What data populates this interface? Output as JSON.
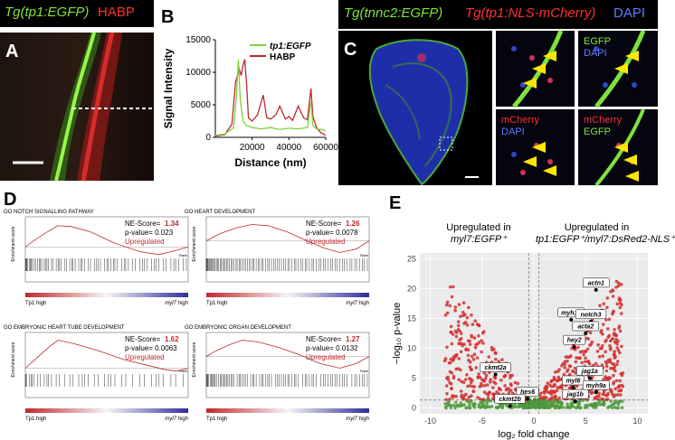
{
  "panelA": {
    "letter": "A",
    "header_green": "Tg(tp1:EGFP)",
    "header_red": "HABP"
  },
  "panelB": {
    "letter": "B"
  },
  "panelC": {
    "letter": "C",
    "header_part1": "Tg(tnnc2:EGFP)",
    "header_part2": "Tg(tp1:NLS-mCherry)",
    "header_part3": "DAPI",
    "zoom_labels": [
      {
        "l1": "",
        "l2": ""
      },
      {
        "l1": "EGFP",
        "l2": "DAPI"
      },
      {
        "l1": "mCherry",
        "l2": "DAPI"
      },
      {
        "l1": "mCherry",
        "l2": "EGFP"
      }
    ]
  },
  "panelD": {
    "letter": "D",
    "plots": [
      {
        "title": "GO NOTCH SIGNALLING PATHWAY",
        "nes_label": "NE-Score=",
        "nes": "1.34",
        "pval": "p-value= 0.023",
        "status": "Upregulated"
      },
      {
        "title": "GO HEART DEVELOPMENT",
        "nes_label": "NE-Score=",
        "nes": "1.26",
        "pval": "p-value= 0.0078",
        "status": "Upregulated"
      },
      {
        "title": "GO EMBRYONIC HEART TUBE DEVELOPMENT",
        "nes_label": "NE-Score=",
        "nes": "1.62",
        "pval": "p-value= 0.0063",
        "status": "Upregulated"
      },
      {
        "title": "GO EMBRYONIC ORGAN DEVELOPMENT",
        "nes_label": "NE-Score=",
        "nes": "1.27",
        "pval": "p-value= 0.0132",
        "status": "Upregulated"
      }
    ],
    "ylabel": "Enrichment score",
    "left_bar": "Tp1 high",
    "right_bar": "myl7 high",
    "rank": "Rank"
  },
  "panelE": {
    "letter": "E",
    "left_title_1": "Upregulated in",
    "left_title_2": "myl7:EGFP⁺",
    "right_title_1": "Upregulated in",
    "right_title_2": "tp1:EGFP⁺/myl7:DsRed2-NLS⁺"
  },
  "chart_data": [
    {
      "type": "line",
      "xlabel": "Distance (nm)",
      "ylabel": "Signal Intensity",
      "xlim": [
        0,
        60000
      ],
      "ylim": [
        0,
        15000
      ],
      "xticks": [
        20000,
        40000,
        60000
      ],
      "yticks": [
        0,
        5000,
        10000,
        15000
      ],
      "legend_placement": "top-right",
      "series": [
        {
          "name": "tp1:EGFP",
          "color": "#7fd13b",
          "x": [
            0,
            5000,
            10000,
            11500,
            12500,
            13500,
            15000,
            17000,
            20000,
            25000,
            30000,
            35000,
            40000,
            45000,
            50000,
            52000,
            53000,
            55000,
            58000,
            60000
          ],
          "y": [
            300,
            500,
            1500,
            6500,
            12000,
            6000,
            2500,
            1800,
            1500,
            1300,
            1500,
            1200,
            1400,
            1300,
            1500,
            5500,
            1800,
            1300,
            1200,
            1000
          ]
        },
        {
          "name": "HABP",
          "color": "#c0282d",
          "x": [
            0,
            5000,
            9000,
            11000,
            13000,
            14000,
            15000,
            16000,
            17000,
            18000,
            20000,
            23000,
            26000,
            28000,
            30000,
            33000,
            35000,
            38000,
            40000,
            42000,
            45000,
            48000,
            50000,
            52000,
            53000,
            55000,
            57000,
            60000
          ],
          "y": [
            200,
            400,
            2000,
            8500,
            10500,
            9500,
            11000,
            12000,
            8000,
            3000,
            2500,
            3500,
            6500,
            3000,
            2800,
            3500,
            4800,
            2800,
            3200,
            2600,
            4800,
            3000,
            2700,
            7500,
            3200,
            1500,
            800,
            300
          ]
        }
      ]
    },
    {
      "type": "scatter",
      "xlabel": "log₂ fold change",
      "ylabel": "−log₁₀ p-value",
      "xlim": [
        -11,
        11
      ],
      "ylim": [
        -1,
        26
      ],
      "xticks": [
        -10,
        -5,
        0,
        5,
        10
      ],
      "yticks": [
        0,
        5,
        10,
        15,
        20,
        25
      ],
      "thresholds": {
        "x": [
          -0.5,
          0.5
        ],
        "y": 1.3
      },
      "colors": {
        "significant": "#d22f2f",
        "not_significant": "#4e9a3c",
        "background": "#ebebeb"
      },
      "labeled_genes": [
        {
          "gene": "actn1",
          "x": 6.0,
          "y": 19.8
        },
        {
          "gene": "myh10",
          "x": 3.6,
          "y": 14.8
        },
        {
          "gene": "notch3",
          "x": 5.5,
          "y": 14.5
        },
        {
          "gene": "acta2",
          "x": 5.0,
          "y": 12.5
        },
        {
          "gene": "hey2",
          "x": 3.9,
          "y": 10.2
        },
        {
          "gene": "ckmt2a",
          "x": -3.7,
          "y": 5.6
        },
        {
          "gene": "jag1a",
          "x": 5.4,
          "y": 5.0
        },
        {
          "gene": "myl6",
          "x": 3.8,
          "y": 3.4
        },
        {
          "gene": "myh9a",
          "x": 6.0,
          "y": 2.6
        },
        {
          "gene": "hes6",
          "x": -0.6,
          "y": 1.5
        },
        {
          "gene": "jag1b",
          "x": 4.0,
          "y": 1.1
        },
        {
          "gene": "ckmt2b",
          "x": -2.3,
          "y": 0.3
        }
      ]
    }
  ]
}
